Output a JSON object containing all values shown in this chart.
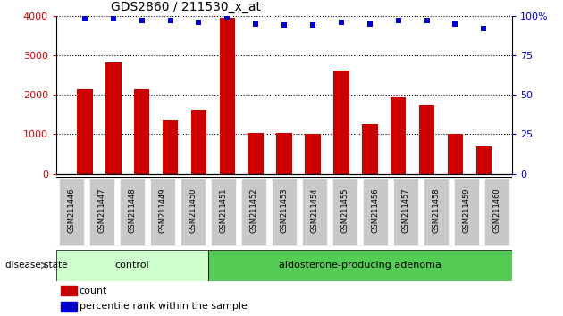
{
  "title": "GDS2860 / 211530_x_at",
  "samples": [
    "GSM211446",
    "GSM211447",
    "GSM211448",
    "GSM211449",
    "GSM211450",
    "GSM211451",
    "GSM211452",
    "GSM211453",
    "GSM211454",
    "GSM211455",
    "GSM211456",
    "GSM211457",
    "GSM211458",
    "GSM211459",
    "GSM211460"
  ],
  "counts": [
    2150,
    2820,
    2150,
    1370,
    1620,
    3950,
    1030,
    1040,
    1010,
    2620,
    1260,
    1930,
    1730,
    1020,
    700
  ],
  "percentiles": [
    98,
    98,
    97,
    97,
    96,
    99,
    95,
    94,
    94,
    96,
    95,
    97,
    97,
    95,
    92
  ],
  "control_count": 5,
  "adenoma_count": 10,
  "bar_color": "#cc0000",
  "dot_color": "#0000cc",
  "control_bg": "#ccffcc",
  "adenoma_bg": "#55cc55",
  "xticklabel_bg": "#c8c8c8",
  "control_label": "control",
  "adenoma_label": "aldosterone-producing adenoma",
  "ylim_left": [
    0,
    4000
  ],
  "ylim_right": [
    0,
    100
  ],
  "yticks_left": [
    0,
    1000,
    2000,
    3000,
    4000
  ],
  "yticks_right": [
    0,
    25,
    50,
    75,
    100
  ],
  "legend_count_label": "count",
  "legend_pct_label": "percentile rank within the sample",
  "disease_state_label": "disease state"
}
